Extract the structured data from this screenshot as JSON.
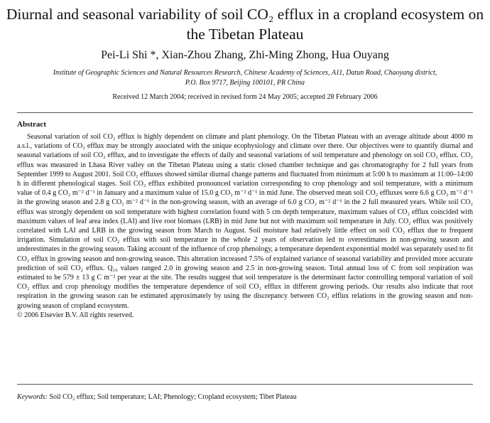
{
  "paper": {
    "title": "Diurnal and seasonal variability of soil CO₂ efflux in a cropland ecosystem on the Tibetan Plateau",
    "authors": "Pei-Li Shi *, Xian-Zhou Zhang, Zhi-Ming Zhong, Hua Ouyang",
    "affiliation": "Institute of Geographic Sciences and Natural Resources Research, Chinese Academy of Sciences, A11, Datun Road, Chaoyang district, P.O. Box 9717, Beijing 100101, PR China",
    "dates": "Received 12 March 2004; received in revised form 24 May 2005; accepted 28 February 2006",
    "abstract_heading": "Abstract",
    "abstract": "Seasonal variation of soil CO₂ efflux is highly dependent on climate and plant phenology. On the Tibetan Plateau with an average altitude about 4000 m a.s.l., variations of CO₂ efflux may be strongly associated with the unique ecophysiology and climate over there. Our objectives were to quantify diurnal and seasonal variations of soil CO₂ efflux, and to investigate the effects of daily and seasonal variations of soil temperature and phenology on soil CO₂ efflux. CO₂ efflux was measured in Lhasa River valley on the Tibetan Plateau using a static closed chamber technique and gas chromatography for 2 full years from September 1999 to August 2001. Soil CO₂ effluxes showed similar diurnal change patterns and fluctuated from minimum at 5:00 h to maximum at 11:00–14:00 h in different phenological stages. Soil CO₂ efflux exhibited pronounced variation corresponding to crop phenology and soil temperature, with a minimum value of 0.4 g CO₂ m⁻² d⁻¹ in January and a maximum value of 15.0 g CO₂ m⁻² d⁻¹ in mid June. The observed mean soil CO₂ effluxes were 6.6 g CO₂ m⁻² d⁻¹ in the growing season and 2.8 g CO₂ m⁻² d⁻¹ in the non-growing season, with an average of 6.0 g CO₂ m⁻² d⁻¹ in the 2 full measured years. While soil CO₂ efflux was strongly dependent on soil temperature with highest correlation found with 5 cm depth temperature, maximum values of CO₂ efflux coincided with maximum values of leaf area index (LAI) and live root biomass (LRB) in mid June but not with maximum soil temperature in July. CO₂ efflux was positively correlated with LAI and LRB in the growing season from March to August. Soil moisture had relatively little effect on soil CO₂ efflux due to frequent irrigation. Simulation of soil CO₂ efflux with soil temperature in the whole 2 years of observation led to overestimates in non-growing season and underestimates in the growing season. Taking account of the influence of crop phenology, a temperature dependent exponential model was separately used to fit CO₂ efflux in growing season and non-growing season. This alteration increased 7.5% of explained variance of seasonal variability and provided more accurate prediction of soil CO₂ efflux. Q₁₀ values ranged 2.0 in growing season and 2.5 in non-growing season. Total annual loss of C from soil respiration was estimated to be 579 ± 13 g C m⁻² per year at the site. The results suggest that soil temperature is the determinant factor controlling temporal variation of soil CO₂ efflux and crop phenology modifies the temperature dependence of soil CO₂ efflux in different growing periods. Our results also indicate that root respiration in the growing season can be estimated approximately by using the discrepancy between CO₂ efflux relations in the growing season and non-growing season of cropland ecosystem.",
    "copyright": "© 2006 Elsevier B.V. All rights reserved.",
    "keywords_label": "Keywords:",
    "keywords": "Soil CO₂ efflux; Soil temperature; LAI; Phenology; Cropland ecosystem; Tibet Plateau"
  }
}
